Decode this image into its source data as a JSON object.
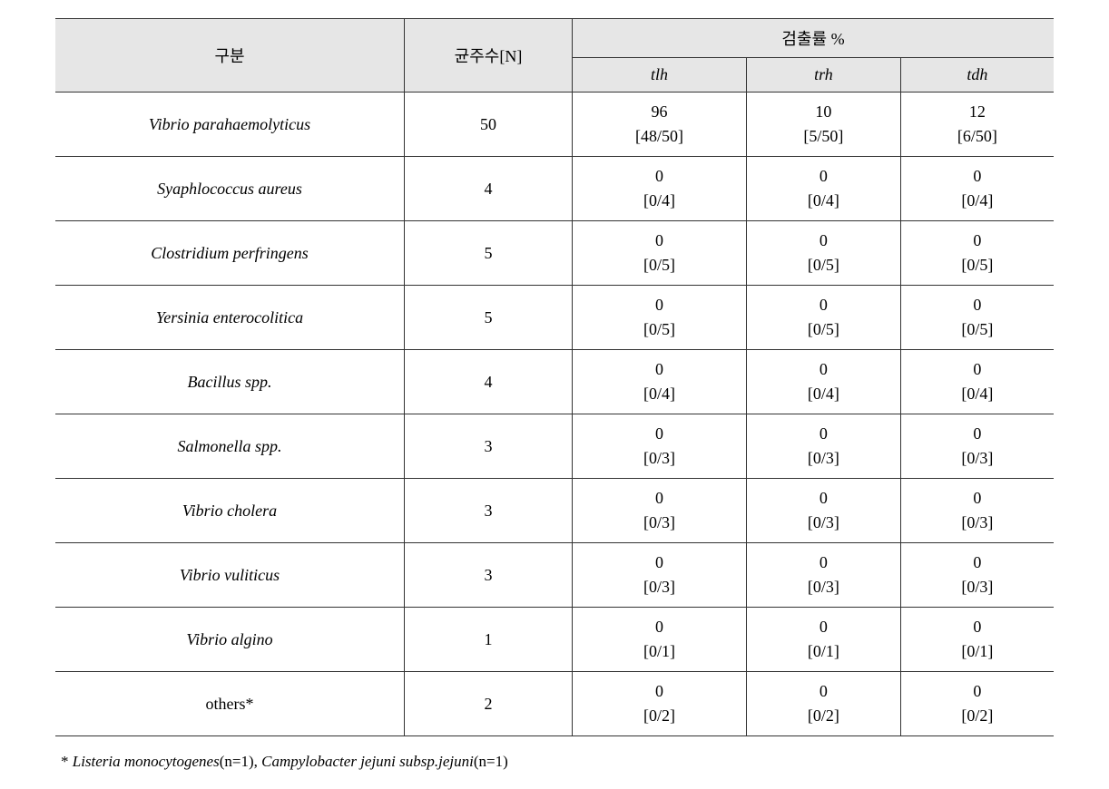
{
  "headers": {
    "category": "구분",
    "strain_count": "균주수[N]",
    "detection_rate": "검출률 %",
    "tlh": "tlh",
    "trh": "trh",
    "tdh": "tdh"
  },
  "rows": [
    {
      "species": "Vibrio parahaemolyticus",
      "italic": true,
      "n": "50",
      "tlh_val": "96",
      "tlh_frac": "[48/50]",
      "trh_val": "10",
      "trh_frac": "[5/50]",
      "tdh_val": "12",
      "tdh_frac": "[6/50]"
    },
    {
      "species": "Syaphlococcus aureus",
      "italic": true,
      "n": "4",
      "tlh_val": "0",
      "tlh_frac": "[0/4]",
      "trh_val": "0",
      "trh_frac": "[0/4]",
      "tdh_val": "0",
      "tdh_frac": "[0/4]"
    },
    {
      "species": "Clostridium perfringens",
      "italic": true,
      "n": "5",
      "tlh_val": "0",
      "tlh_frac": "[0/5]",
      "trh_val": "0",
      "trh_frac": "[0/5]",
      "tdh_val": "0",
      "tdh_frac": "[0/5]"
    },
    {
      "species": "Yersinia enterocolitica",
      "italic": true,
      "n": "5",
      "tlh_val": "0",
      "tlh_frac": "[0/5]",
      "trh_val": "0",
      "trh_frac": "[0/5]",
      "tdh_val": "0",
      "tdh_frac": "[0/5]"
    },
    {
      "species": "Bacillus spp.",
      "italic": true,
      "n": "4",
      "tlh_val": "0",
      "tlh_frac": "[0/4]",
      "trh_val": "0",
      "trh_frac": "[0/4]",
      "tdh_val": "0",
      "tdh_frac": "[0/4]"
    },
    {
      "species": "Salmonella spp.",
      "italic": true,
      "n": "3",
      "tlh_val": "0",
      "tlh_frac": "[0/3]",
      "trh_val": "0",
      "trh_frac": "[0/3]",
      "tdh_val": "0",
      "tdh_frac": "[0/3]"
    },
    {
      "species": "Vibrio cholera",
      "italic": true,
      "n": "3",
      "tlh_val": "0",
      "tlh_frac": "[0/3]",
      "trh_val": "0",
      "trh_frac": "[0/3]",
      "tdh_val": "0",
      "tdh_frac": "[0/3]"
    },
    {
      "species": "Vibrio vuliticus",
      "italic": true,
      "n": "3",
      "tlh_val": "0",
      "tlh_frac": "[0/3]",
      "trh_val": "0",
      "trh_frac": "[0/3]",
      "tdh_val": "0",
      "tdh_frac": "[0/3]"
    },
    {
      "species": "Vibrio algino",
      "italic": true,
      "n": "1",
      "tlh_val": "0",
      "tlh_frac": "[0/1]",
      "trh_val": "0",
      "trh_frac": "[0/1]",
      "tdh_val": "0",
      "tdh_frac": "[0/1]"
    },
    {
      "species": "others*",
      "italic": false,
      "n": "2",
      "tlh_val": "0",
      "tlh_frac": "[0/2]",
      "trh_val": "0",
      "trh_frac": "[0/2]",
      "tdh_val": "0",
      "tdh_frac": "[0/2]"
    }
  ],
  "footnote": {
    "prefix": "* ",
    "part1_ital": "Listeria monocytogenes",
    "part1_plain": "(n=1), ",
    "part2_ital": "Campylobacter jejuni subsp.jejuni",
    "part2_plain": "(n=1)"
  },
  "style": {
    "header_bg": "#e6e6e6",
    "border_color": "#333333",
    "text_color": "#000000",
    "bg_color": "#ffffff",
    "font_family": "Times New Roman, serif",
    "base_fontsize": 18,
    "footnote_fontsize": 17
  }
}
